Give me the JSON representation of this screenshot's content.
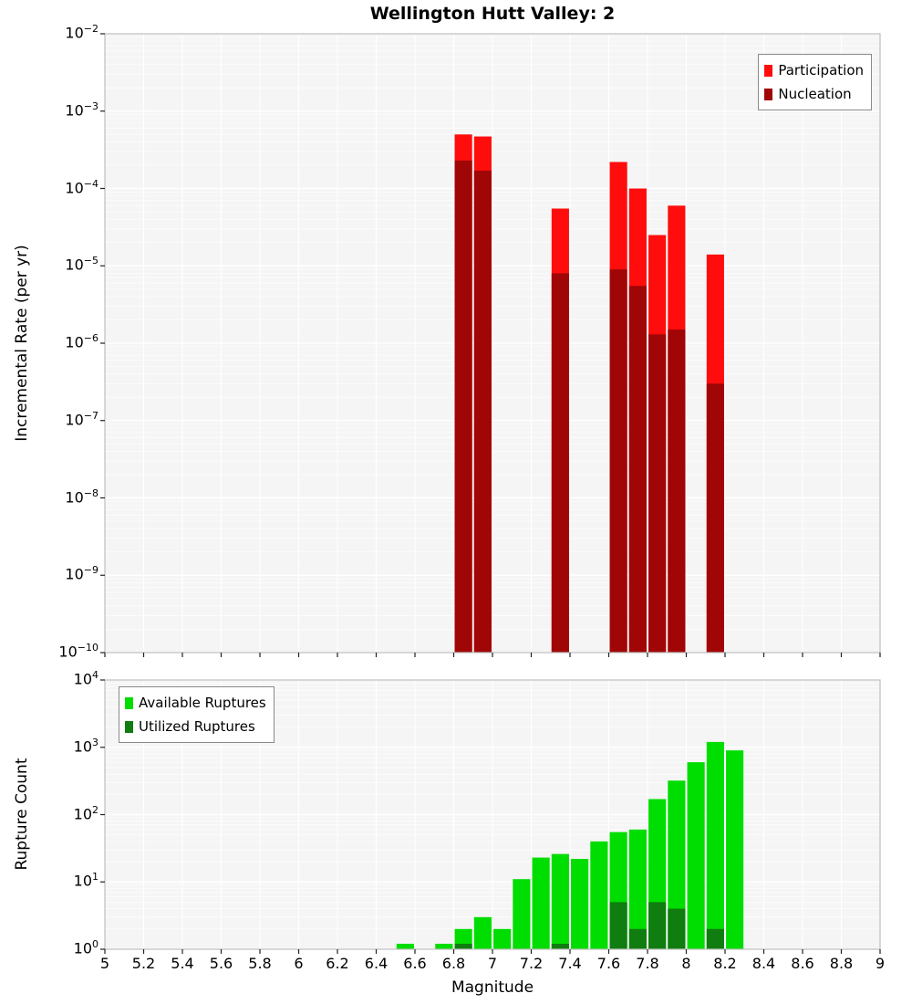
{
  "title": "Wellington Hutt Valley: 2",
  "chart_data": [
    {
      "type": "bar",
      "title": "Wellington Hutt Valley: 2",
      "ylabel": "Incremental Rate (per yr)",
      "xlabel": "",
      "yscale": "log",
      "ylim": [
        1e-10,
        0.01
      ],
      "y_tick_exponents": [
        -2,
        -3,
        -4,
        -5,
        -6,
        -7,
        -8,
        -9,
        -10
      ],
      "xlim": [
        5,
        9
      ],
      "x_tick_step": 0.2,
      "x_tick_labels": [
        "5",
        "5.2",
        "5.4",
        "5.6",
        "5.8",
        "6",
        "6.2",
        "6.4",
        "6.6",
        "6.8",
        "7",
        "7.2",
        "7.4",
        "7.6",
        "7.8",
        "8",
        "8.2",
        "8.4",
        "8.6",
        "8.8",
        "9"
      ],
      "show_x_tick_labels": false,
      "bin_width": 0.1,
      "grid": true,
      "legend_position": "top-right",
      "series": [
        {
          "name": "Participation",
          "color": "#ff0d0d",
          "x": [
            6.85,
            6.95,
            7.35,
            7.65,
            7.75,
            7.85,
            7.95,
            8.15
          ],
          "values": [
            0.0005,
            0.00047,
            5.5e-05,
            0.00022,
            0.0001,
            2.5e-05,
            6e-05,
            1.4e-05
          ]
        },
        {
          "name": "Nucleation",
          "color": "#a00606",
          "x": [
            6.85,
            6.95,
            7.35,
            7.65,
            7.75,
            7.85,
            7.95,
            8.15
          ],
          "values": [
            0.00023,
            0.00017,
            8e-06,
            9e-06,
            5.5e-06,
            1.3e-06,
            1.5e-06,
            3e-07
          ]
        }
      ]
    },
    {
      "type": "bar",
      "title": "",
      "ylabel": "Rupture Count",
      "xlabel": "Magnitude",
      "yscale": "log",
      "ylim": [
        1,
        10000
      ],
      "y_tick_exponents": [
        4,
        3,
        2,
        1,
        0
      ],
      "xlim": [
        5,
        9
      ],
      "x_tick_step": 0.2,
      "x_tick_labels": [
        "5",
        "5.2",
        "5.4",
        "5.6",
        "5.8",
        "6",
        "6.2",
        "6.4",
        "6.6",
        "6.8",
        "7",
        "7.2",
        "7.4",
        "7.6",
        "7.8",
        "8",
        "8.2",
        "8.4",
        "8.6",
        "8.8",
        "9"
      ],
      "show_x_tick_labels": true,
      "bin_width": 0.1,
      "grid": true,
      "legend_position": "top-left",
      "series": [
        {
          "name": "Available Ruptures",
          "color": "#00dd00",
          "x": [
            6.55,
            6.75,
            6.85,
            6.95,
            7.05,
            7.15,
            7.25,
            7.35,
            7.45,
            7.55,
            7.65,
            7.75,
            7.85,
            7.95,
            8.05,
            8.15,
            8.25
          ],
          "values": [
            1,
            1,
            2,
            3,
            2,
            11,
            23,
            26,
            22,
            40,
            55,
            60,
            170,
            320,
            600,
            1200,
            900
          ]
        },
        {
          "name": "Utilized Ruptures",
          "color": "#0f7d0f",
          "x": [
            6.85,
            7.35,
            7.65,
            7.75,
            7.85,
            7.95,
            8.15
          ],
          "values": [
            1,
            1,
            5,
            2,
            5,
            4,
            2
          ]
        }
      ]
    }
  ]
}
